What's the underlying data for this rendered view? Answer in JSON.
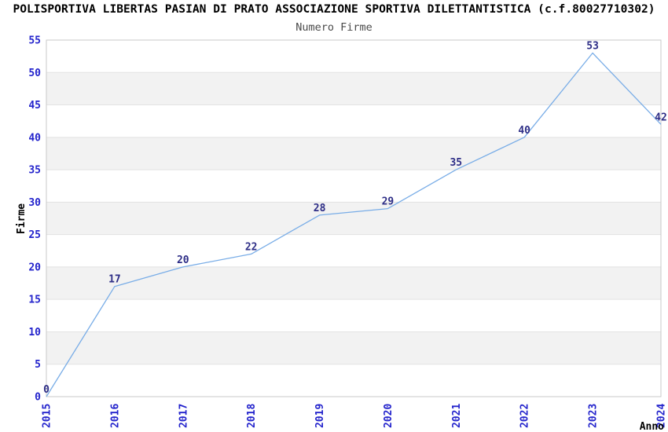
{
  "header": {
    "title": "POLISPORTIVA LIBERTAS PASIAN DI PRATO ASSOCIAZIONE SPORTIVA DILETTANTISTICA (c.f.80027710302)",
    "subtitle": "Numero Firme"
  },
  "chart_data": {
    "type": "line",
    "title": "Numero Firme",
    "categories": [
      "2015",
      "2016",
      "2017",
      "2018",
      "2019",
      "2020",
      "2021",
      "2022",
      "2023",
      "2024"
    ],
    "values": [
      0,
      17,
      20,
      22,
      28,
      29,
      35,
      40,
      53,
      42
    ],
    "xlabel": "Anno",
    "ylabel": "Firme",
    "ylim": [
      0,
      55
    ],
    "ytick_step": 5,
    "legend": "none",
    "grid": "alternating-horizontal-bands",
    "colors": {
      "line": "#79ade7",
      "tick_label": "#2323cc",
      "data_label": "#2d2d86",
      "band_fill": "#f2f2f2",
      "grid_line": "#e2e2e2",
      "plot_border": "#c9c9c9",
      "background": "#ffffff",
      "title": "#000000",
      "subtitle": "#4a4a4a"
    }
  }
}
